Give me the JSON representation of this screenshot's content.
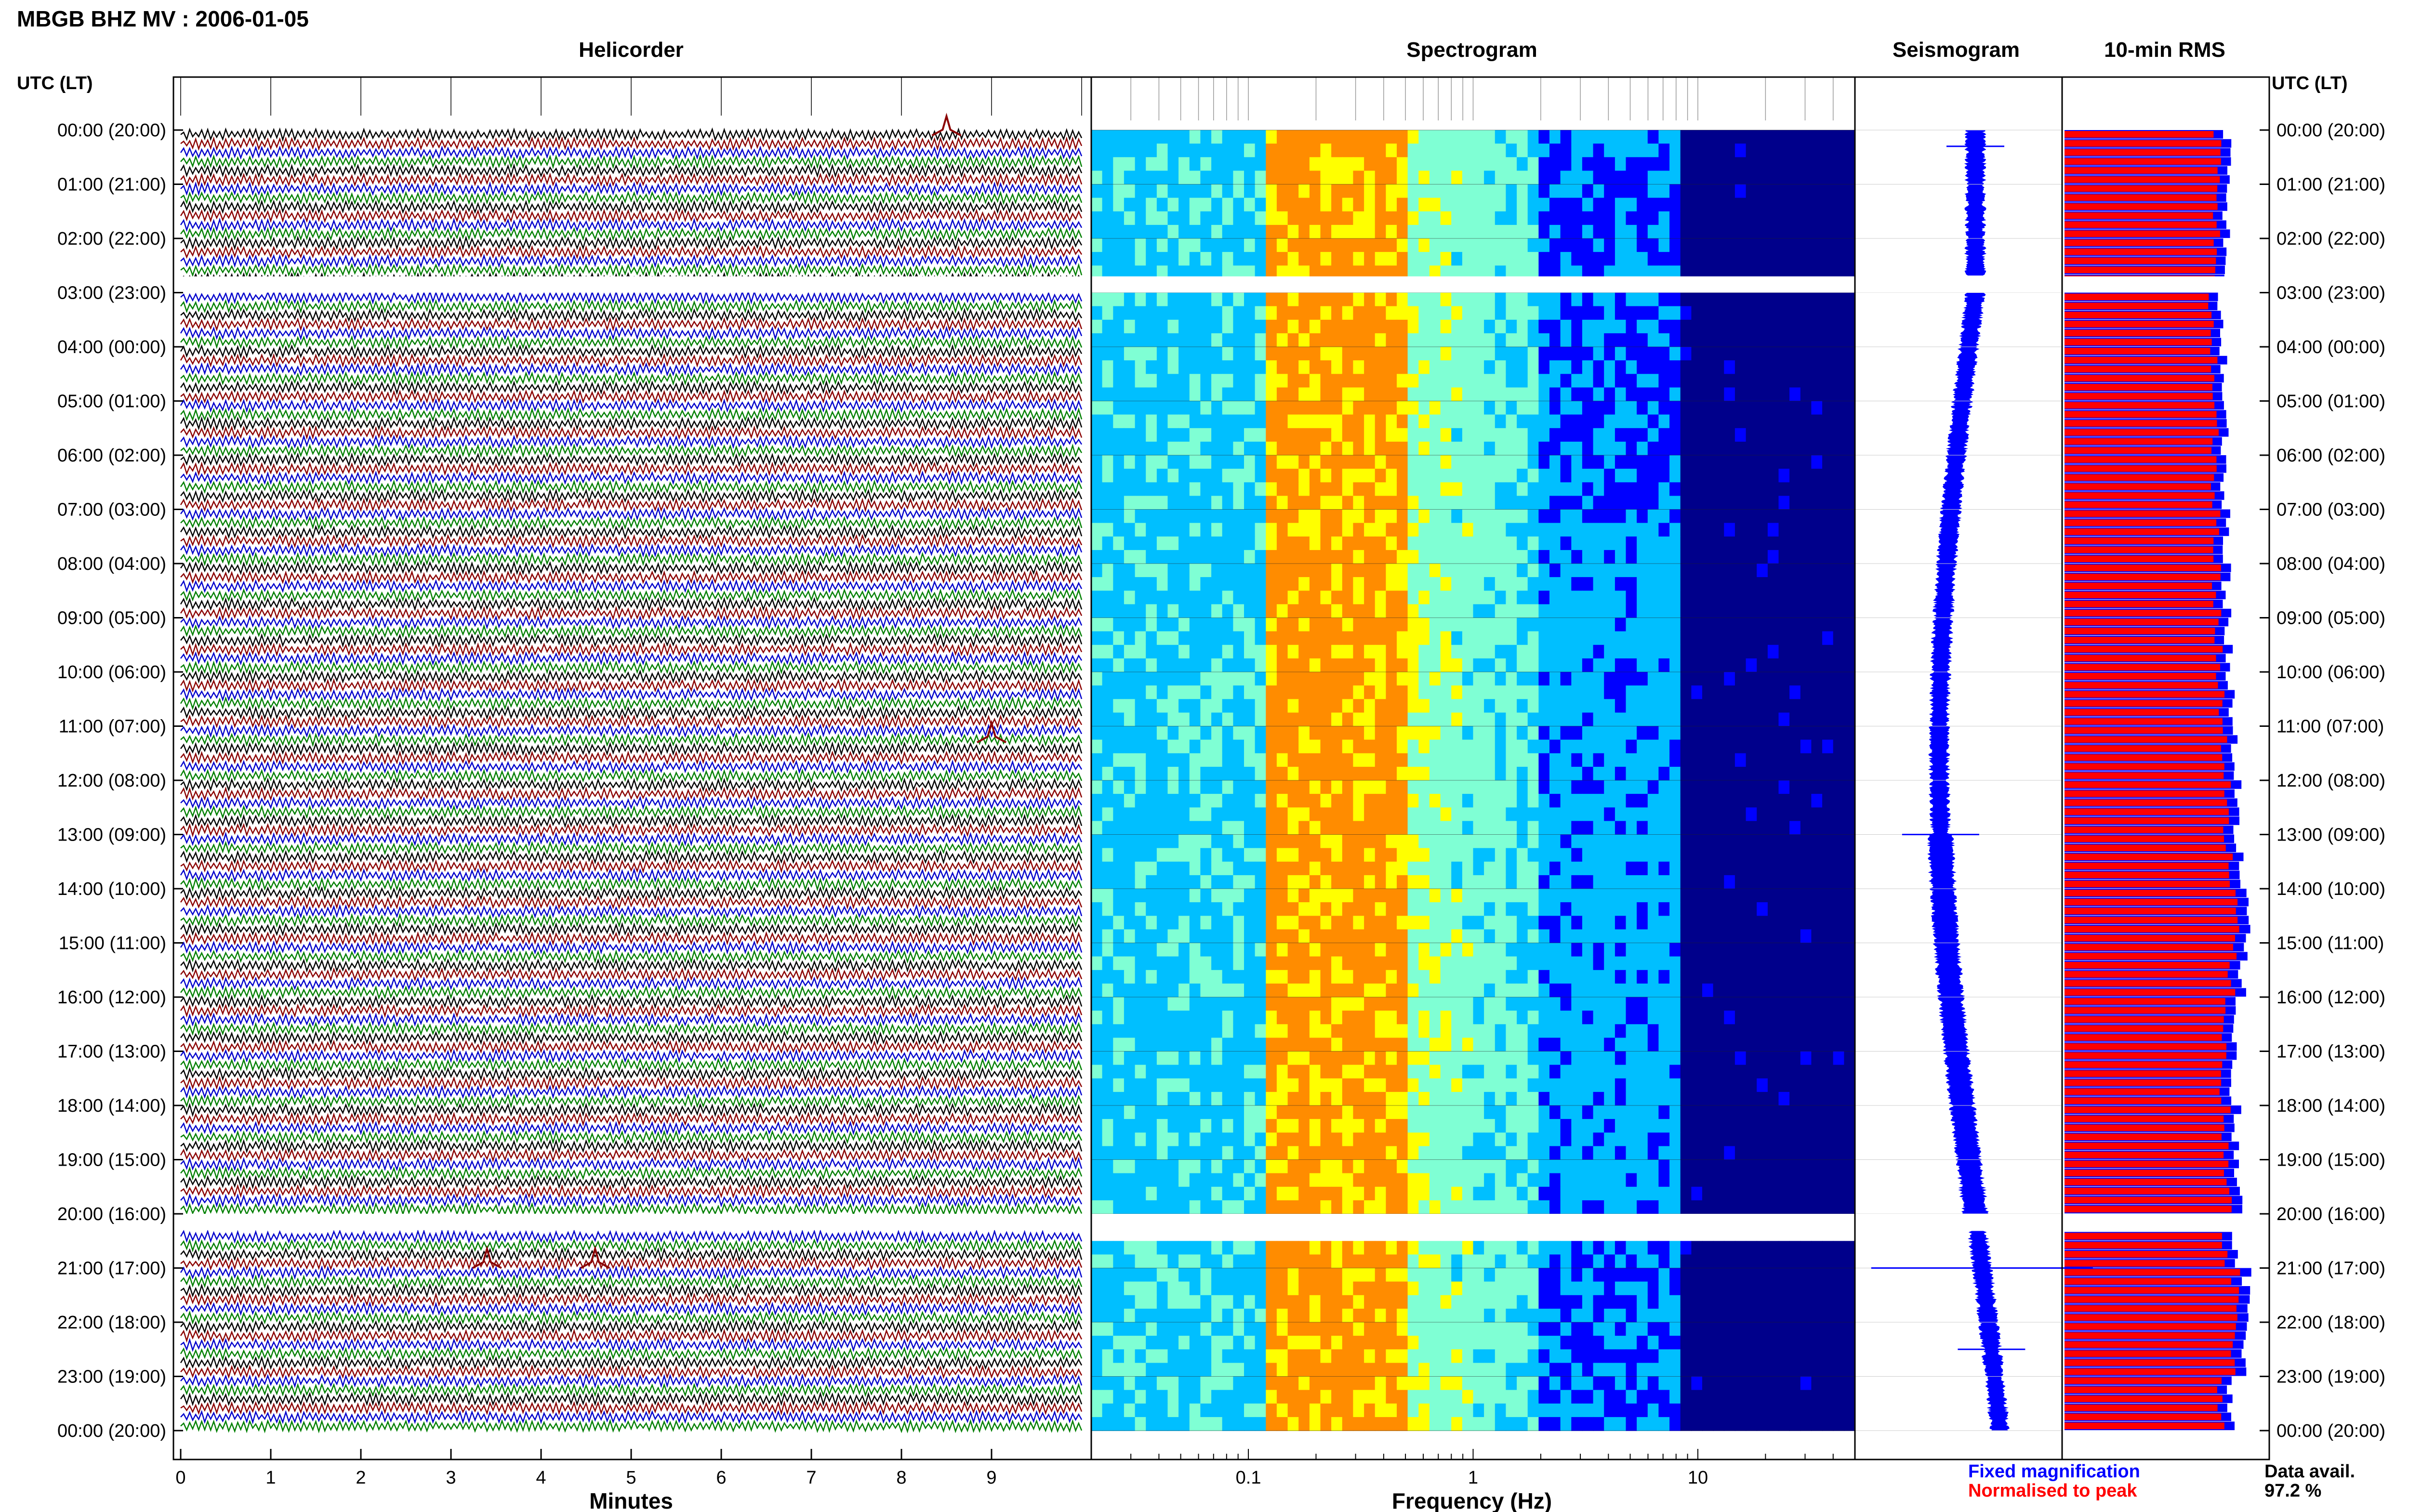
{
  "title": "MBGB BHZ MV : 2006-01-05",
  "time_axis_label": "UTC (LT)",
  "time_ticks": [
    "00:00 (20:00)",
    "01:00 (21:00)",
    "02:00 (22:00)",
    "03:00 (23:00)",
    "04:00 (00:00)",
    "05:00 (01:00)",
    "06:00 (02:00)",
    "07:00 (03:00)",
    "08:00 (04:00)",
    "09:00 (05:00)",
    "10:00 (06:00)",
    "11:00 (07:00)",
    "12:00 (08:00)",
    "13:00 (09:00)",
    "14:00 (10:00)",
    "15:00 (11:00)",
    "16:00 (12:00)",
    "17:00 (13:00)",
    "18:00 (14:00)",
    "19:00 (15:00)",
    "20:00 (16:00)",
    "21:00 (17:00)",
    "22:00 (18:00)",
    "23:00 (19:00)",
    "00:00 (20:00)"
  ],
  "panels": {
    "helicorder": "Helicorder",
    "spectrogram": "Spectrogram",
    "seismogram": "Seismogram",
    "rms": "10-min RMS"
  },
  "legend": {
    "fixed": "Fixed magnification",
    "normalised": "Normalised to peak",
    "fixed_color": "#0000ff",
    "normalised_color": "#ff0000"
  },
  "data_avail": {
    "label": "Data avail.",
    "value": "97.2 %"
  },
  "chart_data": [
    {
      "type": "line",
      "title": "Helicorder",
      "xlabel": "Minutes",
      "x_ticks": [
        "0",
        "1",
        "2",
        "3",
        "4",
        "5",
        "6",
        "7",
        "8",
        "9"
      ],
      "xlim": [
        0,
        10
      ],
      "ylim_hours": [
        0,
        24
      ],
      "trace_colors": [
        "#000000",
        "#8b0000",
        "#0000cc",
        "#008000"
      ],
      "gaps_utc_hours": [
        [
          2.7,
          3.0
        ],
        [
          20.0,
          20.3
        ]
      ],
      "events": [
        {
          "time_hour": 0.1,
          "minute": 8.5
        },
        {
          "time_hour": 11.3,
          "minute": 9.0
        },
        {
          "time_hour": 21.0,
          "minute": 3.4
        },
        {
          "time_hour": 21.0,
          "minute": 4.6
        }
      ]
    },
    {
      "type": "heatmap",
      "title": "Spectrogram",
      "xlabel": "Frequency (Hz)",
      "x_scale": "log",
      "x_ticks": [
        "0.1",
        "1",
        "10"
      ],
      "xlim": [
        0.02,
        50
      ],
      "colormap": [
        "#00008b",
        "#0000ff",
        "#00bfff",
        "#7fffd4",
        "#ffff00",
        "#ff8c00"
      ],
      "peak_band_hz": [
        0.15,
        0.5
      ],
      "gaps_utc_hours": [
        [
          2.7,
          3.0
        ],
        [
          20.0,
          20.3
        ]
      ]
    },
    {
      "type": "line",
      "title": "Seismogram",
      "color": "#0000ff",
      "gaps_utc_hours": [
        [
          2.7,
          3.0
        ],
        [
          20.0,
          20.3
        ]
      ]
    },
    {
      "type": "bar",
      "title": "10-min RMS",
      "series": [
        {
          "name": "Fixed magnification",
          "color": "#0000ff"
        },
        {
          "name": "Normalised to peak",
          "color": "#ff0000"
        }
      ],
      "hourly_relative_rms": [
        0.8,
        0.8,
        0.79,
        0.78,
        0.78,
        0.79,
        0.79,
        0.8,
        0.8,
        0.81,
        0.82,
        0.83,
        0.85,
        0.86,
        0.92,
        0.88,
        0.84,
        0.84,
        0.85,
        0.86,
        0.84,
        0.9,
        0.88,
        0.82
      ],
      "gaps_utc_hours": [
        [
          2.7,
          3.0
        ],
        [
          20.0,
          20.3
        ]
      ]
    }
  ]
}
